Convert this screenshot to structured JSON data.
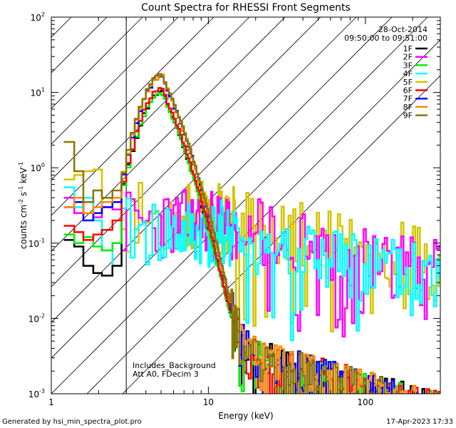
{
  "chart_data": {
    "type": "line",
    "title": "Count Spectra for RHESSI Front Segments",
    "xlabel": "Energy (keV)",
    "ylabel_parts": {
      "base": "counts cm",
      "exp1": "-2",
      "mid": " s",
      "exp2": "-1",
      "unit": " keV",
      "exp3": "-1"
    },
    "xscale": "log",
    "yscale": "log",
    "xlim": [
      1,
      300
    ],
    "ylim": [
      0.001,
      100
    ],
    "x_ticks": [
      {
        "value": 1,
        "label": "1"
      },
      {
        "value": 10,
        "label": "10"
      },
      {
        "value": 100,
        "label": "100"
      }
    ],
    "y_ticks": [
      {
        "value": 0.001,
        "base": "10",
        "exp": "-3"
      },
      {
        "value": 0.01,
        "base": "10",
        "exp": "-2"
      },
      {
        "value": 0.1,
        "base": "10",
        "exp": "-1"
      },
      {
        "value": 1,
        "base": "10",
        "exp": "0"
      },
      {
        "value": 10,
        "base": "10",
        "exp": "1"
      },
      {
        "value": 100,
        "base": "10",
        "exp": "2"
      }
    ],
    "excluded_region": {
      "x_from": 1,
      "x_to": 3
    },
    "date": "28-Oct-2014",
    "time_range": "09:50:00 to 09:51:00",
    "annotations": [
      "Includes_Background",
      "Att A0, FDecim 3"
    ],
    "footer_left": "Generated by hsi_min_spectra_plot.pro",
    "footer_right": "17-Apr-2023 17:33",
    "series": [
      {
        "name": "1F",
        "color": "#000000",
        "shape": "a",
        "peak": 10,
        "low": [
          0.11,
          0.09,
          0.05,
          0.04,
          0.037,
          0.05
        ],
        "noise": 0.08,
        "seed": 11
      },
      {
        "name": "2F",
        "color": "#ff00ff",
        "shape": "b",
        "peak": 0.2,
        "low": [
          0.4,
          0.25,
          0.35,
          0.22,
          0.3,
          0.28
        ],
        "noise": 0.1,
        "seed": 23
      },
      {
        "name": "3F",
        "color": "#00ee00",
        "shape": "a",
        "peak": 9.5,
        "low": [
          0.13,
          0.1,
          0.12,
          0.09,
          0.08,
          0.1
        ],
        "noise": 0.06,
        "seed": 37
      },
      {
        "name": "4F",
        "color": "#00ffff",
        "shape": "b",
        "peak": 0.15,
        "low": [
          0.55,
          0.3,
          0.4,
          0.2,
          0.08,
          0.05
        ],
        "noise": 0.12,
        "seed": 41
      },
      {
        "name": "5F",
        "color": "#d4c400",
        "shape": "b",
        "peak": 0.25,
        "low": [
          0.7,
          0.8,
          0.9,
          0.95,
          0.35,
          0.4
        ],
        "noise": 0.15,
        "seed": 53
      },
      {
        "name": "6F",
        "color": "#ff0000",
        "shape": "a",
        "peak": 11,
        "low": [
          0.17,
          0.14,
          0.11,
          0.13,
          0.15,
          0.2
        ],
        "noise": 0.07,
        "seed": 61
      },
      {
        "name": "7F",
        "color": "#0000ff",
        "shape": "a",
        "peak": 16,
        "low": [
          0.3,
          0.35,
          0.2,
          0.25,
          0.3,
          0.35
        ],
        "noise": 0.06,
        "seed": 71
      },
      {
        "name": "8F",
        "color": "#ff8800",
        "shape": "a",
        "peak": 16.5,
        "low": [
          0.3,
          0.4,
          0.25,
          0.3,
          0.35,
          0.4
        ],
        "noise": 0.06,
        "seed": 83
      },
      {
        "name": "9F",
        "color": "#8b7500",
        "shape": "a",
        "peak": 17,
        "low": [
          2.2,
          0.9,
          0.35,
          0.5,
          0.4,
          0.5
        ],
        "noise": 0.07,
        "seed": 97
      }
    ]
  }
}
